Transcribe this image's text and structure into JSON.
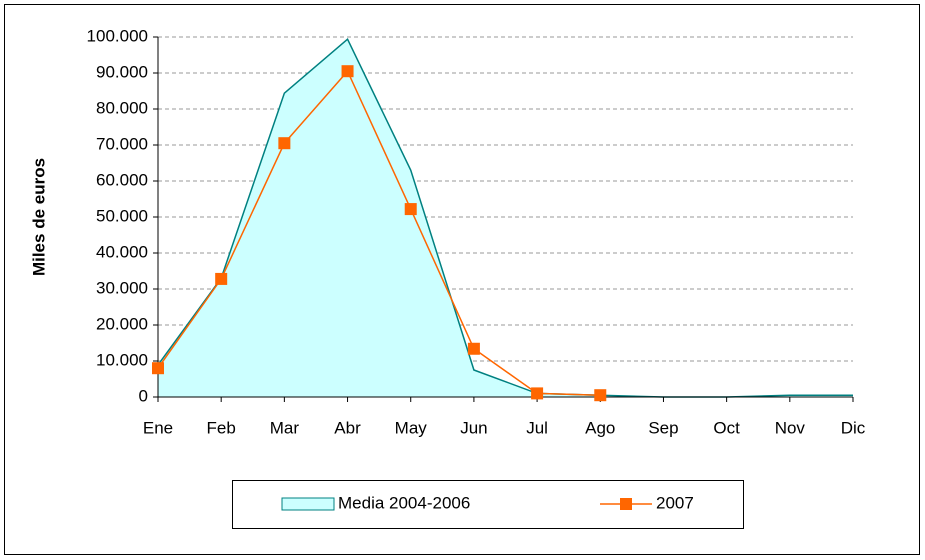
{
  "chart_data": {
    "type": "area-line",
    "y_label": "Miles de euros",
    "categories": [
      "Ene",
      "Feb",
      "Mar",
      "Abr",
      "May",
      "Jun",
      "Jul",
      "Ago",
      "Sep",
      "Oct",
      "Nov",
      "Dic"
    ],
    "series": [
      {
        "name": "Media 2004-2006",
        "kind": "area",
        "color": "#ccffff",
        "edge_color": "#008080",
        "values": [
          8900,
          33000,
          84400,
          99400,
          63000,
          7500,
          1000,
          500,
          0,
          0,
          500,
          500
        ]
      },
      {
        "name": "2007",
        "kind": "line",
        "color": "#ff6600",
        "values": [
          8000,
          32800,
          70500,
          90500,
          52200,
          13400,
          1000,
          500,
          null,
          null,
          null,
          null
        ]
      }
    ],
    "ylim": [
      0,
      100000
    ],
    "yticks": [
      0,
      {
        "value": 10000,
        "label": "10.000"
      },
      {
        "value": 20000,
        "label": "20.000"
      },
      {
        "value": 30000,
        "label": "30.000"
      },
      {
        "value": 40000,
        "label": "40.000"
      },
      {
        "value": 50000,
        "label": "50.000"
      },
      {
        "value": 60000,
        "label": "60.000"
      },
      {
        "value": 70000,
        "label": "70.000"
      },
      {
        "value": 80000,
        "label": "80.000"
      },
      {
        "value": 90000,
        "label": "90.000"
      },
      {
        "value": 100000,
        "label": "100.000"
      }
    ],
    "grid": true
  }
}
